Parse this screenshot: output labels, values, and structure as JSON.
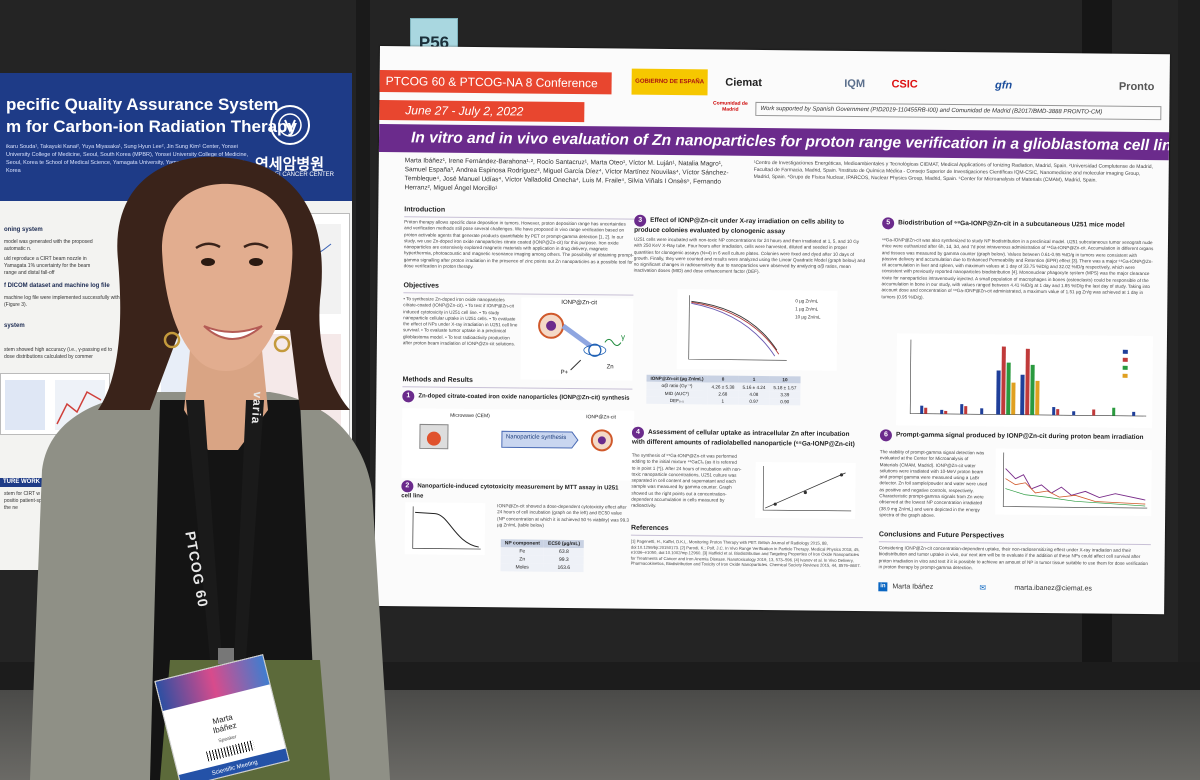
{
  "board_number": "P56",
  "left_poster": {
    "title_line1": "pecific Quality Assurance System",
    "title_line2": "m for Carbon-ion Radiation Therapy",
    "authors": "ikaru Souda¹, Takayuki Kanai², Yuya Miyasaka¹, Sung Hyun Lee², Jin Sung Kim¹ Center, Yonsei University College of Medicine, Seoul, South Korea (MPBR), Yonsei University College of Medicine, Seoul, Korea te School of Medical Science, Yamagata University, Yamagata, Japan oft Inc., Seoul, Korea",
    "org_korean": "연세암병원",
    "org_english": "YONSEI CANCER CENTER",
    "section_1": "oning system",
    "text_1": "model was generated with the proposed automatic n.",
    "text_2": "uld reproduce a CIRT beam nozzle in Yamagata 1% uncertainty for the beam range and distal fall-off",
    "section_2": "f DICOM dataset and machine log file",
    "text_3": "machine log file were implemented successfully with (Figure 3).",
    "section_3": "system",
    "text_4": "stem showed high accuracy (i.e., γ-passing ed to dose distributions calculated by commer",
    "future_bar": "TURE WORK",
    "future_text": "stem for CIRT w ice, Spot positio patient-specifi cted in the ne"
  },
  "poster": {
    "conference": "PTCOG 60 & PTCOG-NA 8 Conference",
    "dates": "June 27 - July 2, 2022",
    "logos": [
      "GOBIERNO DE ESPAÑA",
      "Ciemat",
      "IQM",
      "CSIC",
      "gfn",
      "Comunidad de Madrid",
      "Pronto"
    ],
    "support_note": "Work supported by Spanish Government (PID2019-110455RB-I00) and Comunidad de Madrid (B2017/BMD-3888 PRONTO-CM)",
    "title": "In vitro and in vivo evaluation of Zn nanoparticles for proton range verification in a glioblastoma cell line",
    "authors": "Marta Ibáñez¹, Irene Fernández-Barahona¹·², Rocío Santacruz¹, Marta Oteo¹, Víctor M. Luján¹, Natalia Magro¹, Samuel España³, Andrea Espinosa Rodríguez³, Miguel García Díez⁴, Víctor Martínez Nouvilas⁴, Víctor Sánchez-Tembleque⁴, José Manuel Udías⁴, Víctor Valladolid Onecha⁴, Luis M. Fraile⁴, Silvia Viñals I Onsès⁵, Fernando Herranz², Miguel Ángel Morcillo¹",
    "affiliations": "¹Centro de Investigaciones Energéticas, Medioambientales y Tecnológicas CIEMAT, Medical Applications of Ionizing Radiation, Madrid, Spain. ²Universidad Complutense de Madrid, Facultad de Farmacia, Madrid, Spain. ³Instituto de Química Médica - Consejo Superior de Investigaciones Científicas IQM-CSIC, Nanomedicine and molecular imaging Group, Madrid, Spain. ⁴Grupo de Física Nuclear, IPARCOS, Nuclear Physics Group, Madrid, Spain. ⁵Center for Microanalysis of Materials (CMAM), Madrid, Spain.",
    "intro_head": "Introduction",
    "intro_text": "Proton therapy allows specific dose deposition in tumors. However, proton deposition range has uncertainties and verification methods still pose several challenges. We have proposed in vivo range verification based on proton activable agents that generate products quantifiable by PET or prompt-gamma detection [1, 2]. In our study, we use Zn-doped iron oxide nanoparticles citrate coated (IONP@Zn-cit) for this purpose. Iron oxide nanoparticles are extensively explored magnetic materials with application in drug delivery, magnetic hyperthermia, photoacoustic and magnetic resonance imaging among others. The possibility of obtaining prompt-gamma signalling after proton irradiation in the presence of zinc points out Zn nanoparticles as a possible tool for dose verification in proton therapy.",
    "objectives_head": "Objectives",
    "objectives_text": "• To synthesize Zn-doped iron oxide nanoparticles citrate-coated (IONP@Zn-cit). • To test if IONP@Zn-cit induced cytotoxicity in U251 cell line. • To study nanoparticle cellular uptake in U251 cells. • To evaluate the effect of NPs under X-ray irradiation in U251 cell line survival. • To evaluate tumor uptake in a preclinical glioblastoma model. • To test radioactivity production after proton beam irradiation of IONP@Zn-cit solutions.",
    "fig_label_ionp": "IONP@Zn-cit",
    "fig_label_zn": "Zn",
    "fig_label_p": "P+",
    "fig_label_gamma": "γ",
    "methods_head": "Methods and Results",
    "s1_head": "Zn-doped citrate-coated iron oxide nanoparticles (IONP@Zn-cit) synthesis",
    "s1_microwave": "Microwave (CEM)",
    "s1_np_label": "Nanoparticle synthesis",
    "s1_ionp": "IONP@Zn-cit",
    "s2_head": "Nanoparticle-induced cytotoxicity measurement by MTT assay in U251 cell line",
    "s2_text": "IONP@Zn-cit showed a dose-dependent cytotoxicity effect after 24 hours of cell incubation (graph on the left) and EC50 value (NP concentration at which it is achieved 50 % viability) was 99.3 µg Zn/mL (table below)",
    "s2_table": {
      "headers": [
        "NP component",
        "EC50 (µg/mL)"
      ],
      "rows": [
        [
          "Fe",
          "63.8"
        ],
        [
          "Zn",
          "99.3"
        ],
        [
          "Moles",
          "163.6"
        ]
      ]
    },
    "s3_head": "Effect of IONP@Zn-cit under X-ray irradiation on cells ability to produce colonies evaluated by clonogenic assay",
    "s3_text": "U251 cells were incubated with non-toxic NP concentrations for 24 hours and then irradiated at 1, 5, and 10 Gy with 250 KeV X-Ray tube. Four hours after irradiation, cells were harvested, diluted and seeded in proper quantities for clonogenic assays (N=4) in 6 well culture plates. Colonies were fixed and dyed after 10 days of growth. Finally, they were counted and results were analyzed using the Linear Quadratic Model (graph below) and no significant changes in radiosensitivity due to nanoparticles were observed by analyzing α/β ratios, mean inactivation doses (MID) and dose enhancement factor (DEF).",
    "s3_legend": [
      "0 µg Zn/mL",
      "1 µg Zn/mL",
      "10 µg Zn/mL"
    ],
    "s3_table": {
      "headers": [
        "IONP@Zn-cit (µg Zn/mL)",
        "0",
        "1",
        "10"
      ],
      "rows": [
        [
          "α/β ratio (Gy⁻¹)",
          "4.26 ± 5.38",
          "5.16 ± 4.24",
          "5.18 ± 1.57"
        ],
        [
          "MID (AUC*)",
          "2.68",
          "4.08",
          "3.39"
        ],
        [
          "DEF₀.₅",
          "1",
          "0.97",
          "0.90"
        ]
      ]
    },
    "s4_head": "Assessment of cellular uptake as intracellular Zn after incubation with different amounts of radiolabelled nanoparticle (⁶⁵Ga-IONP@Zn-cit)",
    "s4_text": "The synthesis of ⁶⁵Ga-IONP@Zn-cit was performed adding to the initial mixture ⁶⁵GaCl₃ (as it is referred to in point 1 (*)). After 24 hours of incubation with non-toxic nanoparticle concentrations, U251 culture was separated in cell content and supernatant and each sample was measured by gamma counter. Graph showed us the right points out a concentration-dependent accumulation in cells measured by radioactivity.",
    "refs_head": "References",
    "refs_text": "[1] Pagenetti, H., Kaffel, D.K.L. Monitoring Proton Therapy with PET. British Journal of Radiology 2015, 88, doi:10.1259/bjr.20150173. [2] Parodi, K.; Polf, J.C. In Vivo Range Verification in Particle Therapy. Medical Physics 2018, 45, e1036–e1050, doi:10.1002/mp.12960. [3] Hatfield et al. Biodistribution and Targeting Properties of Iron Oxide Nanoparticles for Treatments of Cancer and Iron Anemia Disease. Nanotoxicology 2019, 13, 573–596. [4] Ivanov et al. In Vivo Delivery, Pharmacokinetics, Biodistribution and Toxicity of Iron Oxide Nanoparticles. Chemical Society Reviews 2015, 44, 8576–8607.",
    "s5_head": "Biodistribution of ⁶⁸Ga-IONP@Zn-cit in a subcutaneous U251 mice model",
    "s5_text": "⁶⁸Ga-IONP@Zn-cit was also synthesized to study NP biodistribution in a preclinical model. U251 subcutaneous tumor xenograft nude mice were euthanized after 6h, 1d, 3d, and 7d post intravenous administration of ⁶⁸Ga-IONP@Zn-cit. Accumulation in different organs and tissues was measured by gamma counter (graph below). Values between 0.61-0.95 %ID/g in tumors were consistent with passive delivery and accumulation due to Enhanced Permeability and Retention (EPR) effect [3]. There was a major ⁶⁸Ga-IONP@Zn-cit accumulation in liver and spleen, with maximum values at 1 day of 33.75 %ID/g and 32.02 %ID/g respectively, which were consistent with previously reported nanoparticles biodistribution [4]. Mononuclear phagocyte system (MPS) was the major clearance route for nanoparticles intravenously injected. A small population of macrophages in bones (osteoclasts) could be responsible of the accumulation in bone in our study, with values ranged between 4.41 %ID/g at 1 day and 1.85 %ID/g the last day of study. Taking into account dose and concentration of ⁶⁸Ga-IONP@Zn-cit administrated, a maximum value of 1.51 µg Zn/g was achieved at 1 day in tumors (0.95 %ID/g).",
    "s6_head": "Prompt-gamma signal produced by IONP@Zn-cit during proton beam irradiation",
    "s6_text": "The viability of prompt-gamma signal detection was evaluated at the Center for Microanalysis of Materials (CMAM, Madrid). IONP@Zn-cit water solutions were irradiated with 10-MeV proton beam and prompt gamma were measured using a LaBr detector. Zn foil sample/powder and water were used as positive and negative controls, respectively. Characteristic prompt-gamma signals from Zn were observed at the lowest NP concentration irradiated (38.9 mg Zn/mL) and were depicted in the energy spectra of the graph above.",
    "conc_head": "Conclusions and Future Perspectives",
    "conc_text": "Considering IONP@Zn-cit concentration-dependent uptake, their non-radiosensitizing effect under X-ray irradiation and their biodistribution and tumor uptake in vivo, our next aim will be to evaluate if the addition of these NPs could affect cell survival after proton irradiation in vitro and test if it is possible to achieve an amount of NP in tumor tissue suitable to use them for dose verification in proton therapy by prompt-gamma detection.",
    "footer_name": "Marta Ibáñez",
    "footer_email": "marta.ibanez@ciemat.es"
  },
  "lanyard": {
    "text_1": "PTCOG 60",
    "text_2": "varia"
  },
  "badge": {
    "name": "Marta Ibáñez",
    "role": "Speaker",
    "footer": "Scientific Meeting"
  }
}
